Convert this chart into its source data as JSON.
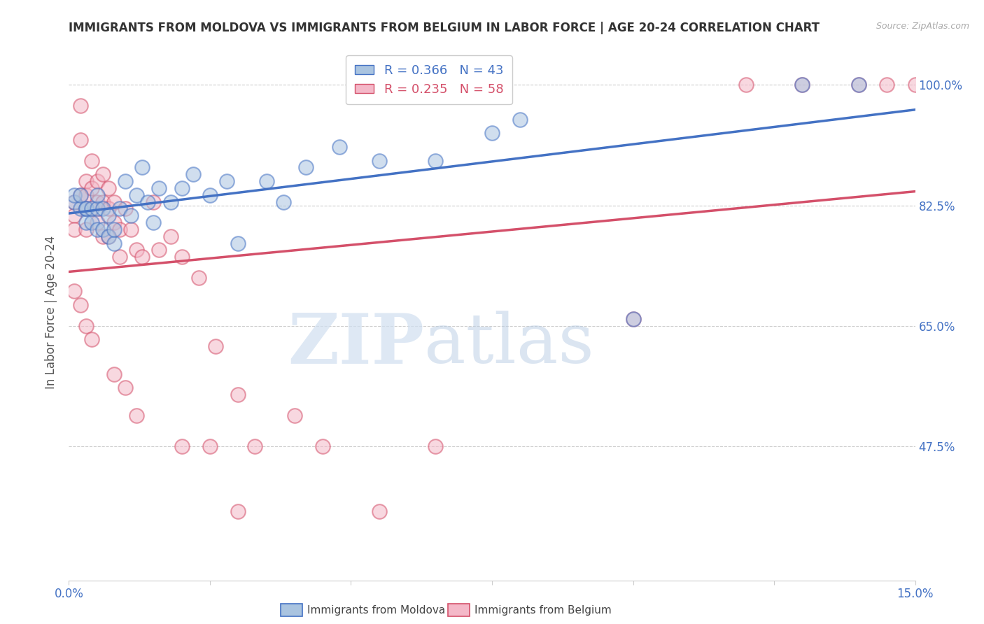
{
  "title": "IMMIGRANTS FROM MOLDOVA VS IMMIGRANTS FROM BELGIUM IN LABOR FORCE | AGE 20-24 CORRELATION CHART",
  "source": "Source: ZipAtlas.com",
  "ylabel": "In Labor Force | Age 20-24",
  "legend_moldova": "Immigrants from Moldova",
  "legend_belgium": "Immigrants from Belgium",
  "R_moldova": 0.366,
  "N_moldova": 43,
  "R_belgium": 0.235,
  "N_belgium": 58,
  "color_moldova": "#aac4e0",
  "color_belgium": "#f4b8c8",
  "line_color_moldova": "#4472c4",
  "line_color_belgium": "#d4506a",
  "xlim": [
    0.0,
    0.15
  ],
  "ylim": [
    0.28,
    1.06
  ],
  "yticks": [
    0.475,
    0.65,
    0.825,
    1.0
  ],
  "ytick_labels": [
    "47.5%",
    "65.0%",
    "82.5%",
    "100.0%"
  ],
  "xticks": [
    0.0,
    0.025,
    0.05,
    0.075,
    0.1,
    0.125,
    0.15
  ],
  "xtick_labels": [
    "0.0%",
    "",
    "",
    "",
    "",
    "",
    "15.0%"
  ],
  "moldova_x": [
    0.001,
    0.001,
    0.002,
    0.002,
    0.003,
    0.003,
    0.003,
    0.004,
    0.004,
    0.005,
    0.005,
    0.005,
    0.006,
    0.006,
    0.007,
    0.007,
    0.008,
    0.008,
    0.009,
    0.01,
    0.011,
    0.012,
    0.013,
    0.014,
    0.015,
    0.016,
    0.018,
    0.02,
    0.022,
    0.025,
    0.028,
    0.03,
    0.035,
    0.038,
    0.042,
    0.048,
    0.055,
    0.065,
    0.075,
    0.08,
    0.1,
    0.13,
    0.14
  ],
  "moldova_y": [
    0.83,
    0.84,
    0.82,
    0.84,
    0.82,
    0.8,
    0.82,
    0.8,
    0.82,
    0.79,
    0.82,
    0.84,
    0.79,
    0.82,
    0.78,
    0.81,
    0.77,
    0.79,
    0.82,
    0.86,
    0.81,
    0.84,
    0.88,
    0.83,
    0.8,
    0.85,
    0.83,
    0.85,
    0.87,
    0.84,
    0.86,
    0.77,
    0.86,
    0.83,
    0.88,
    0.91,
    0.89,
    0.89,
    0.93,
    0.95,
    0.66,
    1.0,
    1.0
  ],
  "belgium_x": [
    0.001,
    0.001,
    0.001,
    0.002,
    0.002,
    0.002,
    0.003,
    0.003,
    0.003,
    0.003,
    0.004,
    0.004,
    0.004,
    0.005,
    0.005,
    0.005,
    0.006,
    0.006,
    0.006,
    0.007,
    0.007,
    0.007,
    0.008,
    0.008,
    0.009,
    0.009,
    0.01,
    0.011,
    0.012,
    0.013,
    0.015,
    0.016,
    0.018,
    0.02,
    0.023,
    0.026,
    0.03,
    0.033,
    0.04,
    0.045,
    0.055,
    0.065,
    0.1,
    0.12,
    0.13,
    0.14,
    0.145,
    0.15,
    0.001,
    0.002,
    0.003,
    0.004,
    0.008,
    0.01,
    0.012,
    0.02,
    0.025,
    0.03
  ],
  "belgium_y": [
    0.83,
    0.81,
    0.79,
    0.97,
    0.92,
    0.84,
    0.86,
    0.84,
    0.82,
    0.79,
    0.89,
    0.85,
    0.82,
    0.86,
    0.83,
    0.8,
    0.87,
    0.83,
    0.78,
    0.85,
    0.82,
    0.78,
    0.83,
    0.8,
    0.79,
    0.75,
    0.82,
    0.79,
    0.76,
    0.75,
    0.83,
    0.76,
    0.78,
    0.75,
    0.72,
    0.62,
    0.55,
    0.475,
    0.52,
    0.475,
    0.38,
    0.475,
    0.66,
    1.0,
    1.0,
    1.0,
    1.0,
    1.0,
    0.7,
    0.68,
    0.65,
    0.63,
    0.58,
    0.56,
    0.52,
    0.475,
    0.475,
    0.38
  ],
  "watermark_zip": "ZIP",
  "watermark_atlas": "atlas",
  "background_color": "#ffffff",
  "grid_color": "#cccccc"
}
